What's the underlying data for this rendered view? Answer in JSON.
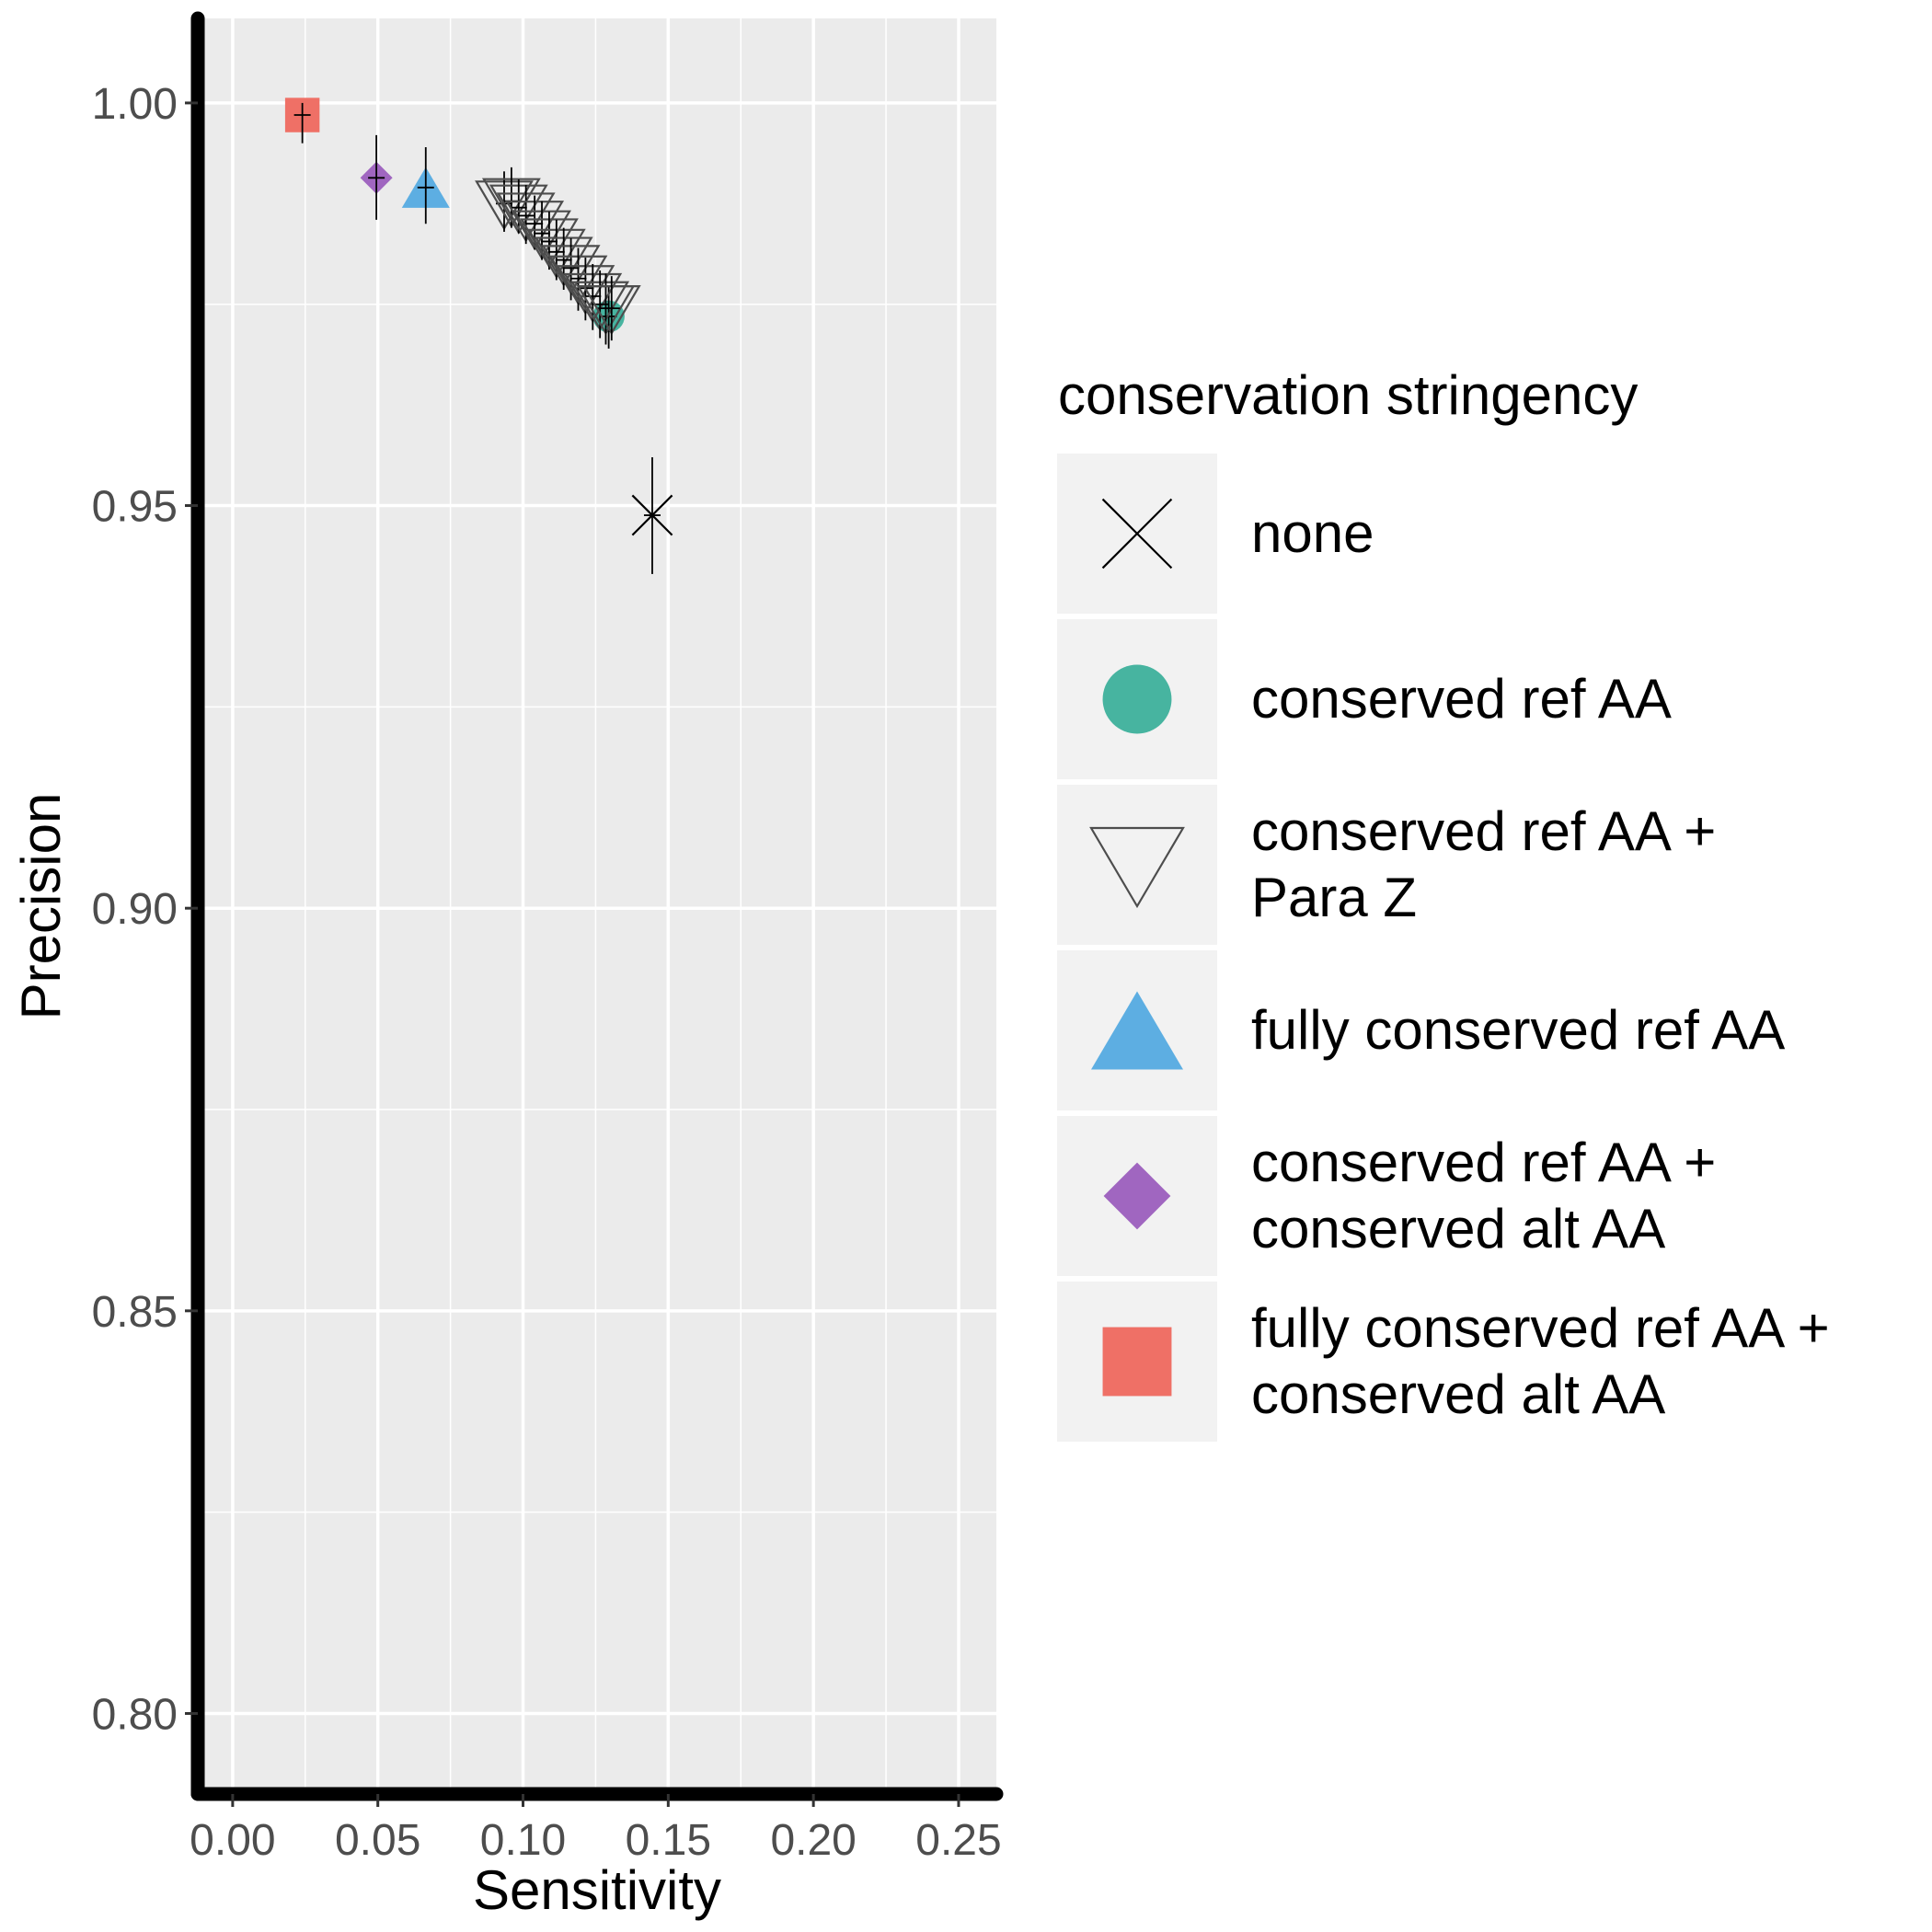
{
  "chart_data": {
    "type": "scatter",
    "title": "",
    "xlabel": "Sensitivity",
    "ylabel": "Precision",
    "xlim": [
      -0.012,
      0.263
    ],
    "ylim": [
      0.79,
      1.0105
    ],
    "xticks": [
      "0.00",
      "0.05",
      "0.10",
      "0.15",
      "0.20",
      "0.25"
    ],
    "yticks": [
      "0.80",
      "0.85",
      "0.90",
      "0.95",
      "1.00"
    ],
    "grid": true,
    "legend_position": "right",
    "legend_title": "conservation stringency",
    "colors": {
      "panel": "#ebebeb",
      "grid": "#ffffff",
      "axis": "#000000",
      "tick_label": "#4d4d4d",
      "legend_key": "#f2f2f2"
    },
    "series": [
      {
        "key": "none",
        "name": "none",
        "label_lines": [
          "none"
        ],
        "shape": "cross",
        "color": "#000000",
        "points": [
          {
            "x": 0.1445,
            "y": 0.9488,
            "ylo": 0.9415,
            "yhi": 0.956
          }
        ]
      },
      {
        "key": "cons_ref",
        "name": "conserved ref AA",
        "label_lines": [
          "conserved ref AA"
        ],
        "shape": "circle",
        "color": "#47b4a0",
        "points": [
          {
            "x": 0.1295,
            "y": 0.9735,
            "ylo": 0.9695,
            "yhi": 0.9772
          }
        ]
      },
      {
        "key": "cons_ref_paraz",
        "name": "conserved ref AA + Para Z",
        "label_lines": [
          "conserved ref AA +",
          "Para Z"
        ],
        "shape": "triangle-down-open",
        "color": "#4d4d4d",
        "points": [
          {
            "x": 0.0935,
            "y": 0.9875,
            "ylo": 0.984,
            "yhi": 0.9915
          },
          {
            "x": 0.096,
            "y": 0.9878,
            "ylo": 0.9845,
            "yhi": 0.992
          },
          {
            "x": 0.0985,
            "y": 0.987,
            "ylo": 0.9838,
            "yhi": 0.9905
          },
          {
            "x": 0.101,
            "y": 0.986,
            "ylo": 0.9825,
            "yhi": 0.9898
          },
          {
            "x": 0.104,
            "y": 0.985,
            "ylo": 0.9818,
            "yhi": 0.9885
          },
          {
            "x": 0.1065,
            "y": 0.9838,
            "ylo": 0.9805,
            "yhi": 0.9878
          },
          {
            "x": 0.109,
            "y": 0.9828,
            "ylo": 0.9793,
            "yhi": 0.9865
          },
          {
            "x": 0.1115,
            "y": 0.9815,
            "ylo": 0.978,
            "yhi": 0.9855
          },
          {
            "x": 0.114,
            "y": 0.9805,
            "ylo": 0.9768,
            "yhi": 0.9845
          },
          {
            "x": 0.1165,
            "y": 0.9795,
            "ylo": 0.9755,
            "yhi": 0.9832
          },
          {
            "x": 0.119,
            "y": 0.9782,
            "ylo": 0.9742,
            "yhi": 0.982
          },
          {
            "x": 0.1215,
            "y": 0.977,
            "ylo": 0.973,
            "yhi": 0.9808
          },
          {
            "x": 0.124,
            "y": 0.976,
            "ylo": 0.9718,
            "yhi": 0.98
          },
          {
            "x": 0.1265,
            "y": 0.975,
            "ylo": 0.9708,
            "yhi": 0.9792
          },
          {
            "x": 0.1285,
            "y": 0.9745,
            "ylo": 0.97,
            "yhi": 0.9788
          },
          {
            "x": 0.1305,
            "y": 0.9745,
            "ylo": 0.9705,
            "yhi": 0.9785
          }
        ]
      },
      {
        "key": "fully_cons_ref",
        "name": "fully conserved ref AA",
        "label_lines": [
          "fully conserved ref AA"
        ],
        "shape": "triangle-up",
        "color": "#5daee2",
        "points": [
          {
            "x": 0.0665,
            "y": 0.9895,
            "ylo": 0.985,
            "yhi": 0.9945
          }
        ]
      },
      {
        "key": "cons_ref_cons_alt",
        "name": "conserved ref AA + conserved alt AA",
        "label_lines": [
          "conserved ref AA +",
          "conserved alt AA"
        ],
        "shape": "diamond",
        "color": "#a066c0",
        "points": [
          {
            "x": 0.0495,
            "y": 0.9907,
            "ylo": 0.9855,
            "yhi": 0.996
          }
        ]
      },
      {
        "key": "fully_cons_ref_cons_alt",
        "name": "fully conserved ref AA + conserved alt AA",
        "label_lines": [
          "fully conserved ref AA +",
          "conserved alt AA"
        ],
        "shape": "square",
        "color": "#ef7066",
        "points": [
          {
            "x": 0.024,
            "y": 0.9985,
            "ylo": 0.995,
            "yhi": 1.0
          }
        ]
      }
    ]
  }
}
